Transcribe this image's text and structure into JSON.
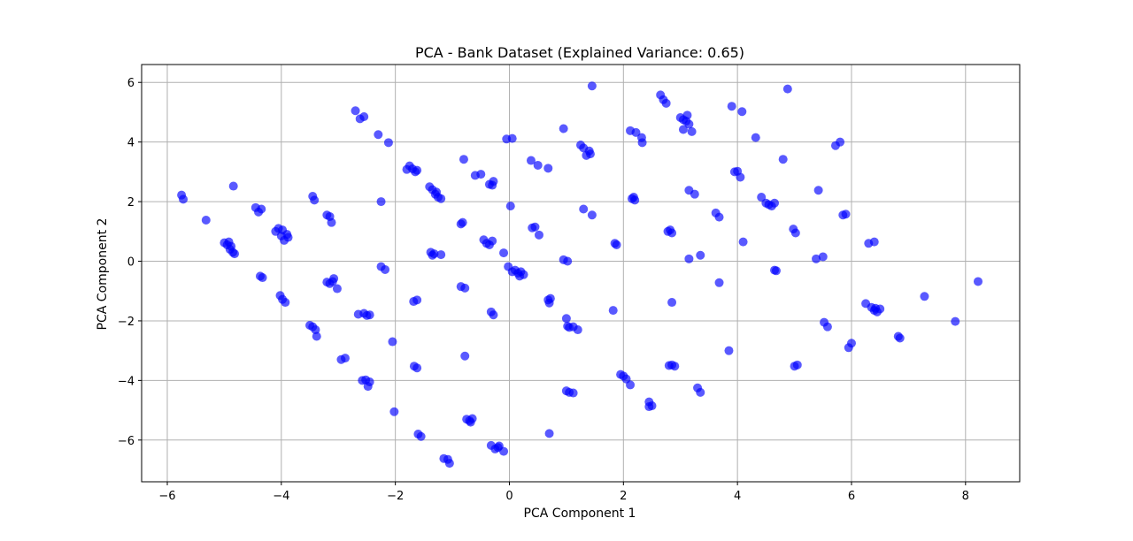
{
  "chart_data": {
    "type": "scatter",
    "title": "PCA - Bank Dataset (Explained Variance: 0.65)",
    "xlabel": "PCA Component 1",
    "ylabel": "PCA Component 2",
    "xlim": [
      -6.45,
      8.95
    ],
    "ylim": [
      -7.4,
      6.6
    ],
    "xticks": [
      -6,
      -4,
      -2,
      0,
      2,
      4,
      6,
      8
    ],
    "yticks": [
      -6,
      -4,
      -2,
      0,
      2,
      4,
      6
    ],
    "xtick_labels": [
      "−6",
      "−4",
      "−2",
      "0",
      "2",
      "4",
      "6",
      "8"
    ],
    "ytick_labels": [
      "−6",
      "−4",
      "−2",
      "0",
      "2",
      "4",
      "6"
    ],
    "grid": true,
    "point_color": "#0000ff",
    "points": [
      [
        -5.75,
        2.22
      ],
      [
        -5.72,
        2.08
      ],
      [
        -5.32,
        1.38
      ],
      [
        -4.84,
        2.52
      ],
      [
        -5.0,
        0.62
      ],
      [
        -4.95,
        0.55
      ],
      [
        -4.92,
        0.65
      ],
      [
        -4.88,
        0.5
      ],
      [
        -4.85,
        0.3
      ],
      [
        -4.82,
        0.25
      ],
      [
        -4.9,
        0.4
      ],
      [
        -4.45,
        1.8
      ],
      [
        -4.4,
        1.65
      ],
      [
        -4.35,
        1.75
      ],
      [
        -4.37,
        -0.5
      ],
      [
        -4.33,
        -0.55
      ],
      [
        -4.1,
        1.0
      ],
      [
        -4.05,
        1.1
      ],
      [
        -4.0,
        0.85
      ],
      [
        -3.98,
        1.05
      ],
      [
        -3.95,
        0.7
      ],
      [
        -3.9,
        0.9
      ],
      [
        -3.88,
        0.8
      ],
      [
        -4.02,
        -1.15
      ],
      [
        -3.98,
        -1.28
      ],
      [
        -3.93,
        -1.38
      ],
      [
        -3.45,
        2.18
      ],
      [
        -3.42,
        2.05
      ],
      [
        -3.2,
        1.55
      ],
      [
        -3.15,
        1.5
      ],
      [
        -3.12,
        1.3
      ],
      [
        -3.2,
        -0.7
      ],
      [
        -3.15,
        -0.75
      ],
      [
        -3.1,
        -0.68
      ],
      [
        -3.08,
        -0.58
      ],
      [
        -3.02,
        -0.92
      ],
      [
        -3.5,
        -2.15
      ],
      [
        -3.45,
        -2.2
      ],
      [
        -3.4,
        -2.3
      ],
      [
        -3.38,
        -2.52
      ],
      [
        -2.95,
        -3.3
      ],
      [
        -2.88,
        -3.25
      ],
      [
        -2.7,
        5.05
      ],
      [
        -2.62,
        4.78
      ],
      [
        -2.55,
        4.85
      ],
      [
        -2.3,
        4.25
      ],
      [
        -2.12,
        3.98
      ],
      [
        -2.25,
        2.0
      ],
      [
        -2.25,
        -0.18
      ],
      [
        -2.18,
        -0.28
      ],
      [
        -2.65,
        -1.78
      ],
      [
        -2.55,
        -1.75
      ],
      [
        -2.5,
        -1.82
      ],
      [
        -2.45,
        -1.8
      ],
      [
        -2.58,
        -4.0
      ],
      [
        -2.52,
        -3.98
      ],
      [
        -2.48,
        -4.2
      ],
      [
        -2.45,
        -4.05
      ],
      [
        -2.05,
        -2.7
      ],
      [
        -2.02,
        -5.05
      ],
      [
        -1.8,
        3.08
      ],
      [
        -1.75,
        3.2
      ],
      [
        -1.7,
        3.1
      ],
      [
        -1.65,
        3.0
      ],
      [
        -1.62,
        3.05
      ],
      [
        -1.68,
        -1.35
      ],
      [
        -1.62,
        -1.3
      ],
      [
        -1.67,
        -3.52
      ],
      [
        -1.62,
        -3.58
      ],
      [
        -1.6,
        -5.8
      ],
      [
        -1.55,
        -5.88
      ],
      [
        -1.4,
        2.5
      ],
      [
        -1.35,
        2.4
      ],
      [
        -1.3,
        2.25
      ],
      [
        -1.25,
        2.15
      ],
      [
        -1.2,
        2.1
      ],
      [
        -1.28,
        2.32
      ],
      [
        -1.38,
        0.3
      ],
      [
        -1.35,
        0.2
      ],
      [
        -1.32,
        0.25
      ],
      [
        -1.2,
        0.22
      ],
      [
        -1.15,
        -6.62
      ],
      [
        -1.08,
        -6.65
      ],
      [
        -1.05,
        -6.78
      ],
      [
        -0.8,
        3.42
      ],
      [
        -0.82,
        1.3
      ],
      [
        -0.85,
        1.25
      ],
      [
        -0.85,
        -0.85
      ],
      [
        -0.78,
        -0.9
      ],
      [
        -0.78,
        -3.18
      ],
      [
        -0.75,
        -5.3
      ],
      [
        -0.7,
        -5.35
      ],
      [
        -0.68,
        -5.4
      ],
      [
        -0.65,
        -5.28
      ],
      [
        -0.6,
        2.88
      ],
      [
        -0.5,
        2.92
      ],
      [
        -0.35,
        2.58
      ],
      [
        -0.3,
        2.55
      ],
      [
        -0.28,
        2.68
      ],
      [
        -0.45,
        0.72
      ],
      [
        -0.4,
        0.6
      ],
      [
        -0.35,
        0.55
      ],
      [
        -0.3,
        0.68
      ],
      [
        -0.32,
        -1.7
      ],
      [
        -0.28,
        -1.8
      ],
      [
        -0.32,
        -6.18
      ],
      [
        -0.25,
        -6.3
      ],
      [
        -0.2,
        -6.25
      ],
      [
        -0.18,
        -6.2
      ],
      [
        -0.1,
        -6.38
      ],
      [
        -0.1,
        0.28
      ],
      [
        -0.05,
        4.1
      ],
      [
        0.05,
        4.12
      ],
      [
        0.02,
        1.85
      ],
      [
        -0.02,
        -0.18
      ],
      [
        0.05,
        -0.35
      ],
      [
        0.1,
        -0.3
      ],
      [
        0.15,
        -0.4
      ],
      [
        0.2,
        -0.35
      ],
      [
        0.25,
        -0.45
      ],
      [
        0.18,
        -0.5
      ],
      [
        0.38,
        3.38
      ],
      [
        0.5,
        3.22
      ],
      [
        0.68,
        3.12
      ],
      [
        0.4,
        1.12
      ],
      [
        0.45,
        1.15
      ],
      [
        0.52,
        0.88
      ],
      [
        0.68,
        -1.3
      ],
      [
        0.72,
        -1.25
      ],
      [
        0.7,
        -1.4
      ],
      [
        0.7,
        -5.78
      ],
      [
        0.95,
        4.45
      ],
      [
        0.95,
        0.05
      ],
      [
        1.02,
        0.0
      ],
      [
        1.0,
        -1.92
      ],
      [
        1.02,
        -2.18
      ],
      [
        1.05,
        -2.22
      ],
      [
        1.12,
        -2.2
      ],
      [
        1.2,
        -2.3
      ],
      [
        1.0,
        -4.35
      ],
      [
        1.05,
        -4.4
      ],
      [
        1.12,
        -4.42
      ],
      [
        1.25,
        3.9
      ],
      [
        1.3,
        3.8
      ],
      [
        1.35,
        3.55
      ],
      [
        1.4,
        3.7
      ],
      [
        1.42,
        3.6
      ],
      [
        1.3,
        1.75
      ],
      [
        1.45,
        1.55
      ],
      [
        1.45,
        5.88
      ],
      [
        1.85,
        0.6
      ],
      [
        1.88,
        0.55
      ],
      [
        1.82,
        -1.65
      ],
      [
        1.95,
        -3.8
      ],
      [
        2.0,
        -3.85
      ],
      [
        2.05,
        -3.95
      ],
      [
        2.12,
        -4.15
      ],
      [
        2.12,
        4.38
      ],
      [
        2.22,
        4.32
      ],
      [
        2.32,
        4.15
      ],
      [
        2.33,
        3.98
      ],
      [
        2.15,
        2.1
      ],
      [
        2.2,
        2.05
      ],
      [
        2.18,
        2.15
      ],
      [
        2.45,
        -4.72
      ],
      [
        2.45,
        -4.88
      ],
      [
        2.5,
        -4.85
      ],
      [
        2.65,
        5.58
      ],
      [
        2.7,
        5.42
      ],
      [
        2.75,
        5.3
      ],
      [
        2.78,
        1.0
      ],
      [
        2.82,
        1.05
      ],
      [
        2.85,
        0.95
      ],
      [
        2.85,
        -1.38
      ],
      [
        2.8,
        -3.5
      ],
      [
        2.85,
        -3.48
      ],
      [
        2.9,
        -3.52
      ],
      [
        3.0,
        4.82
      ],
      [
        3.05,
        4.75
      ],
      [
        3.1,
        4.7
      ],
      [
        3.12,
        4.9
      ],
      [
        3.15,
        4.6
      ],
      [
        3.2,
        4.35
      ],
      [
        3.05,
        4.42
      ],
      [
        3.15,
        2.38
      ],
      [
        3.25,
        2.25
      ],
      [
        3.15,
        0.08
      ],
      [
        3.35,
        0.2
      ],
      [
        3.3,
        -4.25
      ],
      [
        3.35,
        -4.4
      ],
      [
        3.62,
        1.62
      ],
      [
        3.68,
        1.48
      ],
      [
        3.68,
        -0.72
      ],
      [
        3.85,
        -3.0
      ],
      [
        3.9,
        5.2
      ],
      [
        4.08,
        5.02
      ],
      [
        3.95,
        3.0
      ],
      [
        4.0,
        3.02
      ],
      [
        4.05,
        2.82
      ],
      [
        4.1,
        0.65
      ],
      [
        4.32,
        4.15
      ],
      [
        4.42,
        2.15
      ],
      [
        4.5,
        1.95
      ],
      [
        4.55,
        1.9
      ],
      [
        4.6,
        1.85
      ],
      [
        4.65,
        1.95
      ],
      [
        4.65,
        -0.3
      ],
      [
        4.68,
        -0.32
      ],
      [
        4.8,
        3.42
      ],
      [
        4.88,
        5.78
      ],
      [
        4.98,
        1.08
      ],
      [
        5.02,
        0.95
      ],
      [
        5.0,
        -3.52
      ],
      [
        5.05,
        -3.48
      ],
      [
        5.38,
        0.08
      ],
      [
        5.42,
        2.38
      ],
      [
        5.5,
        0.15
      ],
      [
        5.52,
        -2.05
      ],
      [
        5.58,
        -2.2
      ],
      [
        5.72,
        3.88
      ],
      [
        5.8,
        4.0
      ],
      [
        5.85,
        1.55
      ],
      [
        5.9,
        1.58
      ],
      [
        5.95,
        -2.9
      ],
      [
        6.0,
        -2.75
      ],
      [
        6.25,
        -1.42
      ],
      [
        6.3,
        0.6
      ],
      [
        6.4,
        0.65
      ],
      [
        6.35,
        -1.55
      ],
      [
        6.4,
        -1.65
      ],
      [
        6.45,
        -1.7
      ],
      [
        6.5,
        -1.6
      ],
      [
        6.42,
        -1.58
      ],
      [
        6.82,
        -2.52
      ],
      [
        6.85,
        -2.58
      ],
      [
        7.28,
        -1.18
      ],
      [
        7.82,
        -2.02
      ],
      [
        8.22,
        -0.68
      ]
    ]
  }
}
